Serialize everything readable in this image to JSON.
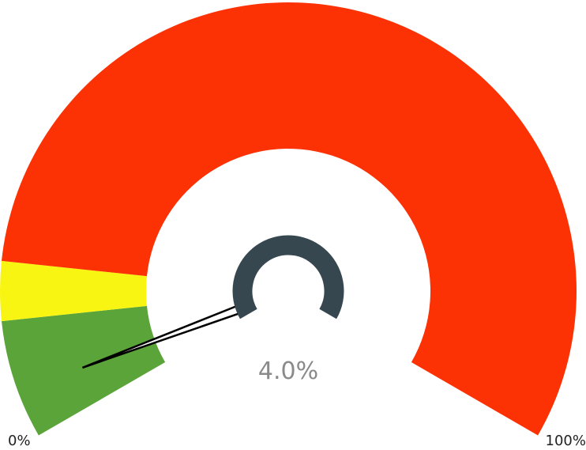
{
  "chart_data": {
    "type": "gauge",
    "value": 4.0,
    "value_label": "4.0%",
    "min": 0,
    "max": 100,
    "min_label": "0%",
    "max_label": "100%",
    "bands": [
      {
        "from": 0,
        "to": 10,
        "color": "#5aa43a"
      },
      {
        "from": 10,
        "to": 15,
        "color": "#f9f512"
      },
      {
        "from": 15,
        "to": 100,
        "color": "#fc3104"
      }
    ],
    "needle_color": "#000000",
    "hub_color": "#37474f"
  }
}
